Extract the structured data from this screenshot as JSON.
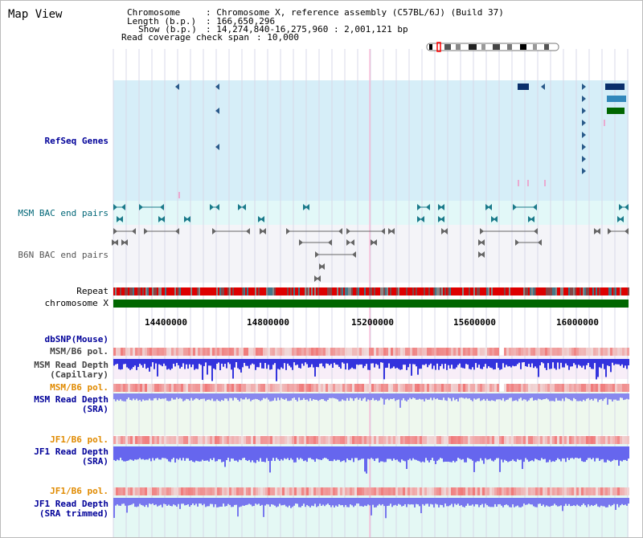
{
  "view_title": "Map View",
  "info": {
    "chromosome_label": "Chromosome",
    "chromosome_value": ": Chromosome X, reference assembly (C57BL/6J) (Build 37)",
    "length_label": "Length (b.p.)",
    "length_value": ": 166,650,296",
    "show_label": "Show (b.p.)",
    "show_value": ": 14,274,840-16,275,960 : 2,001,121 bp",
    "span_label": "Read coverage check span",
    "span_value": ": 10,000"
  },
  "tracks": {
    "refseq": "RefSeq Genes",
    "msm_bac": "MSM BAC end pairs",
    "b6n_bac": "B6N BAC end pairs",
    "repeat": "Repeat",
    "chromosome": "chromosome X",
    "dbsnp": "dbSNP(Mouse)",
    "msm_pol": "MSM/B6 pol.",
    "msm_depth_cap_1": "MSM Read Depth",
    "msm_depth_cap_2": "(Capillary)",
    "msm_pol2": "MSM/B6 pol.",
    "msm_depth_sra_1": "MSM Read Depth",
    "msm_depth_sra_2": "(SRA)",
    "jf1_pol": "JF1/B6 pol.",
    "jf1_depth_sra_1": "JF1 Read Depth",
    "jf1_depth_sra_2": "(SRA)",
    "jf1_pol2": "JF1/B6 pol.",
    "jf1_depth_trim_1": "JF1 Read Depth",
    "jf1_depth_trim_2": "(SRA trimmed)"
  },
  "axis": {
    "ticks": [
      "14400000",
      "14800000",
      "15200000",
      "15600000",
      "16000000"
    ]
  },
  "colors": {
    "refseq_bg": "#d6eef8",
    "bac_bg": "#e2f8f8",
    "b6n_bg": "#f4f4f8",
    "repeat_red": "#dd0000",
    "chromosome_green": "#006600",
    "depth_blue": "#2222ee",
    "pol_red": "#ee4444",
    "highlight_pink": "#ffaacc"
  }
}
